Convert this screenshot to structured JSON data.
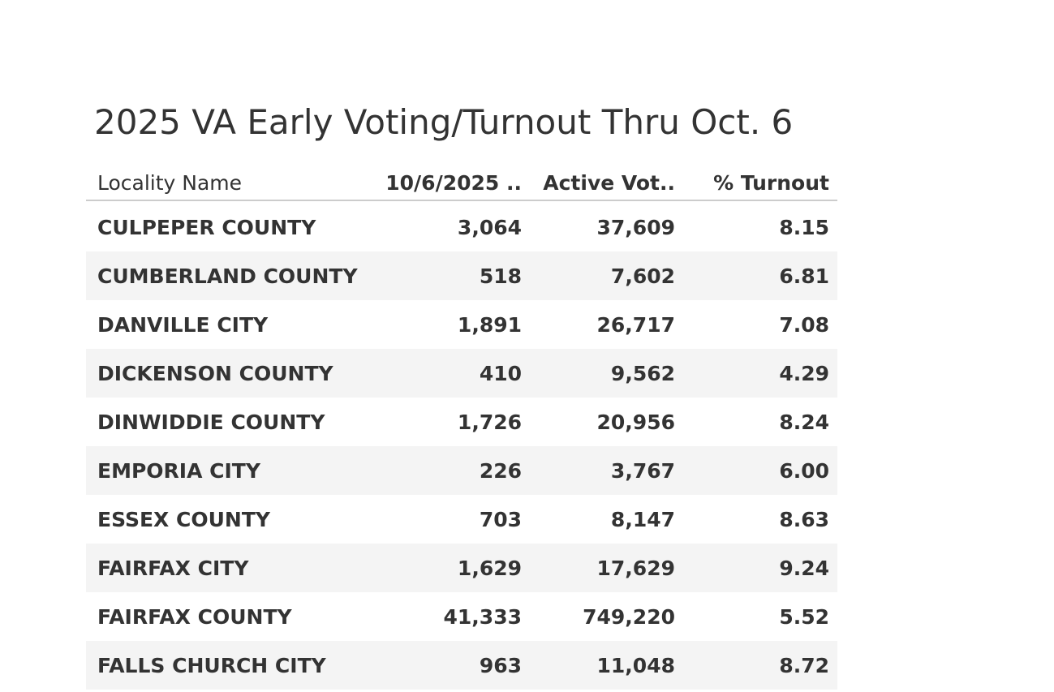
{
  "header": {
    "title": "2025 VA Early Voting/Turnout Thru Oct. 6"
  },
  "table": {
    "columns": [
      "Locality Name",
      "10/6/2025 ..",
      "Active Vot..",
      "% Turnout"
    ],
    "rows": [
      [
        "CULPEPER COUNTY",
        "3,064",
        "37,609",
        "8.15"
      ],
      [
        "CUMBERLAND COUNTY",
        "518",
        "7,602",
        "6.81"
      ],
      [
        "DANVILLE CITY",
        "1,891",
        "26,717",
        "7.08"
      ],
      [
        "DICKENSON COUNTY",
        "410",
        "9,562",
        "4.29"
      ],
      [
        "DINWIDDIE COUNTY",
        "1,726",
        "20,956",
        "8.24"
      ],
      [
        "EMPORIA CITY",
        "226",
        "3,767",
        "6.00"
      ],
      [
        "ESSEX COUNTY",
        "703",
        "8,147",
        "8.63"
      ],
      [
        "FAIRFAX CITY",
        "1,629",
        "17,629",
        "9.24"
      ],
      [
        "FAIRFAX COUNTY",
        "41,333",
        "749,220",
        "5.52"
      ],
      [
        "FALLS CHURCH CITY",
        "963",
        "11,048",
        "8.72"
      ]
    ]
  }
}
